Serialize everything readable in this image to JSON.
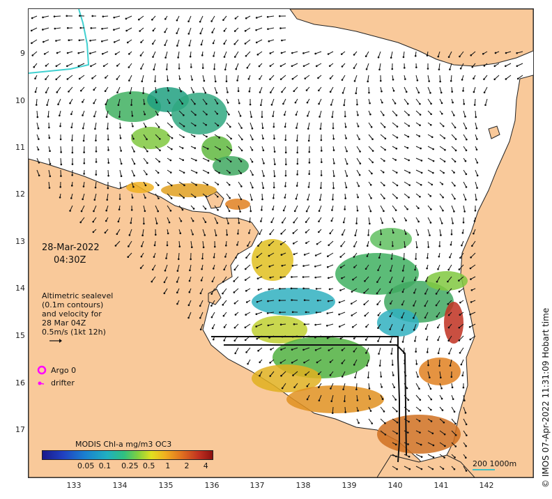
{
  "map": {
    "date": "28-Mar-2022",
    "time": "04:30Z",
    "info_lines": [
      "Altimetric sealevel",
      "(0.1m contours)",
      "and velocity for",
      "28 Mar 04Z",
      "0.5m/s (1kt 12h)"
    ],
    "legend_argo": "Argo 0",
    "legend_drifter": "drifter",
    "colorbar_title": "MODIS Chl-a mg/m3 OC3",
    "colorbar_ticks": [
      "0.05",
      "0.1",
      "0.25",
      "0.5",
      "1",
      "2",
      "4"
    ],
    "colorbar_tick_values": [
      0.05,
      0.1,
      0.25,
      0.5,
      1,
      2,
      4
    ],
    "colorbar_range": [
      0.01,
      5
    ],
    "scale_label": "200  1000m",
    "stamp": "© IMOS 07-Apr-2022 11:31:09 Hobart time",
    "lat_ticks": [
      "9",
      "10",
      "11",
      "12",
      "13",
      "14",
      "15",
      "16",
      "17"
    ],
    "lon_ticks": [
      "133",
      "134",
      "135",
      "136",
      "137",
      "138",
      "139",
      "140",
      "141",
      "142"
    ],
    "lat_values": [
      -9,
      -10,
      -11,
      -12,
      -13,
      -14,
      -15,
      -16,
      -17
    ],
    "lon_values": [
      133,
      134,
      135,
      136,
      137,
      138,
      139,
      140,
      141,
      142
    ],
    "extent": {
      "lon_min": 132.0,
      "lon_max": 143.0,
      "lat_min": -17.95,
      "lat_max": -8.0
    },
    "colors": {
      "land": "#f9c99a",
      "ocean": "#ffffff",
      "arrow": "#111111",
      "argo": "#ff00ff",
      "drifter": "#ff00ff",
      "river": "#40d0d0"
    }
  }
}
